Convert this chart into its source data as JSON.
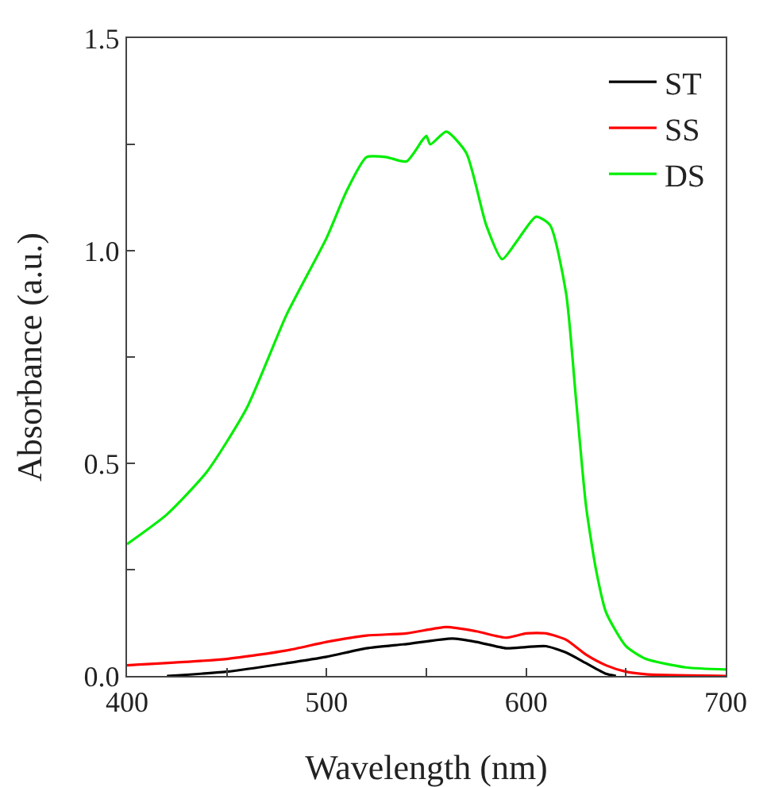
{
  "chart_data": {
    "type": "line",
    "xlabel": "Wavelength (nm)",
    "ylabel": "Absorbance (a.u.)",
    "xlim": [
      400,
      700
    ],
    "ylim": [
      0,
      1.5
    ],
    "xticks": [
      400,
      {
        "value": 450,
        "label": null
      },
      500,
      {
        "value": 550,
        "label": null
      },
      600,
      {
        "value": 650,
        "label": null
      },
      700
    ],
    "yticks": [
      {
        "value": 0,
        "label": "0.0"
      },
      {
        "value": 0.25,
        "label": null
      },
      0.5,
      {
        "value": 0.75,
        "label": null
      },
      {
        "value": 1,
        "label": "1.0"
      },
      {
        "value": 1.25,
        "label": null
      },
      1.5
    ],
    "grid": false,
    "legend": "top right",
    "marker": "none",
    "line_style": "solid",
    "series": [
      {
        "name": "ST",
        "color": "#000000",
        "x": [
          420,
          450,
          480,
          500,
          520,
          540,
          563,
          575,
          590,
          600,
          610,
          620,
          630,
          640,
          645
        ],
        "values": [
          0,
          0.01,
          0.03,
          0.045,
          0.065,
          0.075,
          0.088,
          0.08,
          0.065,
          0.068,
          0.07,
          0.055,
          0.03,
          0.005,
          0
        ]
      },
      {
        "name": "SS",
        "color": "#ff0000",
        "x": [
          400,
          450,
          480,
          500,
          520,
          540,
          560,
          575,
          590,
          600,
          610,
          620,
          630,
          640,
          650,
          660,
          700
        ],
        "values": [
          0.025,
          0.04,
          0.06,
          0.08,
          0.095,
          0.1,
          0.115,
          0.105,
          0.09,
          0.1,
          0.1,
          0.085,
          0.05,
          0.025,
          0.01,
          0.004,
          0
        ]
      },
      {
        "name": "DS",
        "color": "#00ee00",
        "x": [
          400,
          420,
          440,
          460,
          480,
          500,
          510,
          520,
          530,
          540,
          548,
          550,
          552,
          560,
          570,
          580,
          588,
          595,
          605,
          612,
          620,
          625,
          630,
          635,
          640,
          650,
          660,
          680,
          700
        ],
        "values": [
          0.31,
          0.38,
          0.48,
          0.63,
          0.85,
          1.03,
          1.14,
          1.22,
          1.22,
          1.21,
          1.26,
          1.27,
          1.25,
          1.28,
          1.23,
          1.06,
          0.98,
          1.02,
          1.08,
          1.06,
          0.9,
          0.65,
          0.4,
          0.25,
          0.15,
          0.07,
          0.04,
          0.02,
          0.015
        ]
      }
    ]
  }
}
